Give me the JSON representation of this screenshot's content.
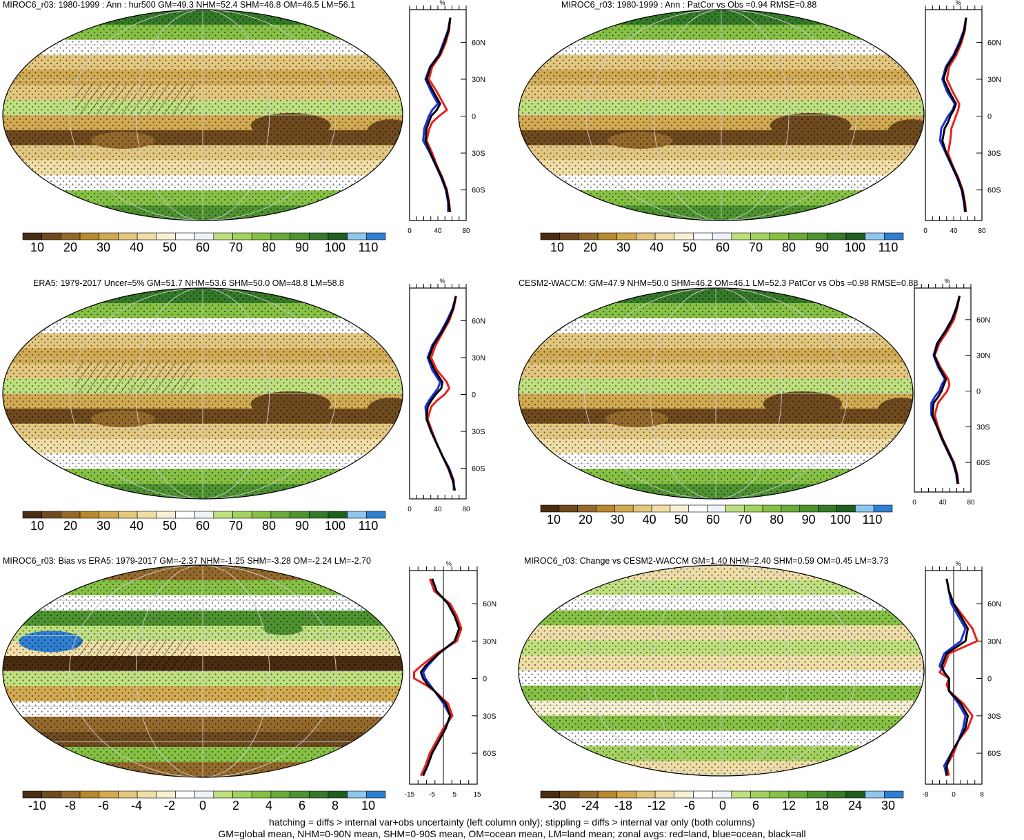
{
  "panels": [
    {
      "title": "MIROC6_r03: 1980-1999 : Ann : hur500 GM=49.3 NHM=52.4 SHM=46.8 OM=46.5 LM=56.1",
      "colorbar": {
        "colors": [
          "#4a2d10",
          "#6e4a1e",
          "#946a2c",
          "#b8892f",
          "#d2aa52",
          "#e3c77e",
          "#f0dea7",
          "#f7f0d3",
          "#ffffff",
          "#eef3f8",
          "#bfe07e",
          "#a3d261",
          "#86c145",
          "#6aaa3a",
          "#4e9330",
          "#357a29",
          "#1f5e1f",
          "#8fc6ee",
          "#2f7fd1"
        ],
        "labels": [
          "10",
          "20",
          "30",
          "40",
          "50",
          "60",
          "70",
          "80",
          "90",
          "100",
          "110"
        ]
      },
      "zonal_ticks": [
        "0",
        "40",
        "80"
      ],
      "zonal_unit": "%",
      "lat_labels": [
        "60N",
        "30N",
        "0",
        "30S",
        "60S"
      ]
    },
    {
      "title": "MIROC6_r03: 1980-1999 : Ann : PatCor vs Obs =0.94 RMSE=0.88",
      "colorbar": {
        "labels": [
          "10",
          "20",
          "30",
          "40",
          "50",
          "60",
          "70",
          "80",
          "90",
          "100",
          "110"
        ]
      },
      "zonal_ticks": [
        "0",
        "40",
        "80"
      ],
      "zonal_unit": "%",
      "lat_labels": [
        "60N",
        "30N",
        "0",
        "30S",
        "60S"
      ]
    },
    {
      "title": "ERA5: 1979-2017 Uncer=5% GM=51.7 NHM=53.6 SHM=50.0 OM=48.8 LM=58.8",
      "colorbar": {
        "labels": [
          "10",
          "20",
          "30",
          "40",
          "50",
          "60",
          "70",
          "80",
          "90",
          "100",
          "110"
        ]
      },
      "zonal_ticks": [
        "0",
        "40",
        "80"
      ],
      "zonal_unit": "%",
      "lat_labels": [
        "60N",
        "30N",
        "0",
        "30S",
        "60S"
      ]
    },
    {
      "title": "CESM2-WACCM: GM=47.9 NHM=50.0 SHM=46.2 OM=46.1 LM=52.3 PatCor vs Obs =0.98 RMSE=0.88",
      "colorbar": {
        "labels": [
          "10",
          "20",
          "30",
          "40",
          "50",
          "60",
          "70",
          "80",
          "90",
          "100",
          "110"
        ]
      },
      "zonal_ticks": [
        "0",
        "40",
        "80"
      ],
      "zonal_unit": "%",
      "lat_labels": [
        "60N",
        "30N",
        "0",
        "30S",
        "60S"
      ]
    },
    {
      "title": "MIROC6_r03: Bias vs ERA5: 1979-2017 GM=-2.37 NHM=-1.25 SHM=-3.28 OM=-2.24 LM=-2.70",
      "colorbar": {
        "labels": [
          "-10",
          "-8",
          "-6",
          "-4",
          "-2",
          "0",
          "2",
          "4",
          "6",
          "8",
          "10"
        ]
      },
      "zonal_ticks": [
        "-15",
        "-5",
        "5",
        "15"
      ],
      "zonal_unit": "%",
      "lat_labels": [
        "60N",
        "30N",
        "0",
        "30S",
        "60S"
      ]
    },
    {
      "title": "MIROC6_r03: Change vs CESM2-WACCM GM=1.40 NHM=2.40 SHM=0.59 OM=0.45 LM=3.73",
      "colorbar": {
        "labels": [
          "-30",
          "-24",
          "-18",
          "-12",
          "-6",
          "0",
          "6",
          "12",
          "18",
          "24",
          "30"
        ]
      },
      "zonal_ticks": [
        "-8",
        "0",
        "8"
      ],
      "zonal_unit": "%",
      "lat_labels": [
        "60N",
        "30N",
        "0",
        "30S",
        "60S"
      ]
    }
  ],
  "footer": {
    "line1": "hatching = diffs > internal var+obs uncertainty (left column only); stippling = diffs > internal var only (both columns)",
    "line2": "GM=global mean, NHM=0-90N mean, SHM=0-90S mean, OM=ocean mean, LM=land mean; zonal avgs: red=land, blue=ocean, black=all"
  },
  "legend_colors": {
    "land": "#e8211c",
    "ocean": "#1c2fe0",
    "all": "#000000"
  }
}
